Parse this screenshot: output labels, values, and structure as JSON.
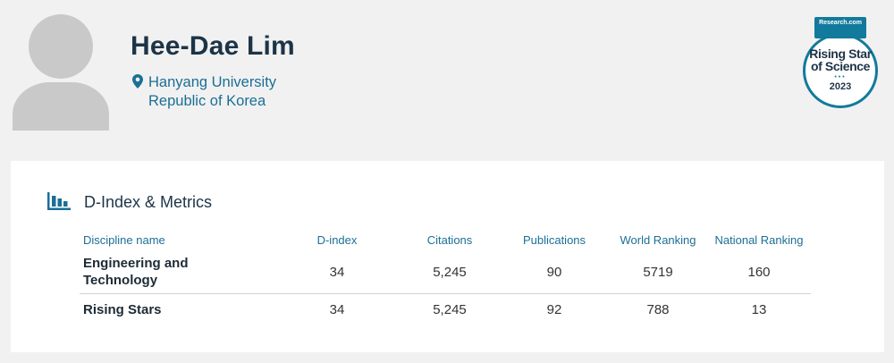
{
  "profile": {
    "name": "Hee-Dae Lim",
    "affiliation": "Hanyang University",
    "country": "Republic of Korea",
    "avatar_icon": "person-silhouette-icon",
    "location_icon": "map-pin-icon"
  },
  "badge": {
    "brand": "Research.com",
    "title_line1": "Rising Star",
    "title_line2": "of Science",
    "dots": "•••",
    "year": "2023",
    "color": "#127a9c"
  },
  "metrics": {
    "title": "D-Index & Metrics",
    "icon": "bar-chart-icon",
    "headers": {
      "discipline": "Discipline name",
      "dindex": "D-index",
      "citations": "Citations",
      "publications": "Publications",
      "world": "World Ranking",
      "national": "National Ranking"
    },
    "rows": [
      {
        "discipline_line1": "Engineering and",
        "discipline_line2": "Technology",
        "dindex": "34",
        "citations": "5,245",
        "publications": "90",
        "world": "5719",
        "national": "160"
      },
      {
        "discipline_line1": "Rising Stars",
        "discipline_line2": "",
        "dindex": "34",
        "citations": "5,245",
        "publications": "92",
        "world": "788",
        "national": "13"
      }
    ]
  },
  "colors": {
    "accent": "#1b6f95",
    "heading": "#1d3447",
    "background": "#f1f1f1"
  }
}
